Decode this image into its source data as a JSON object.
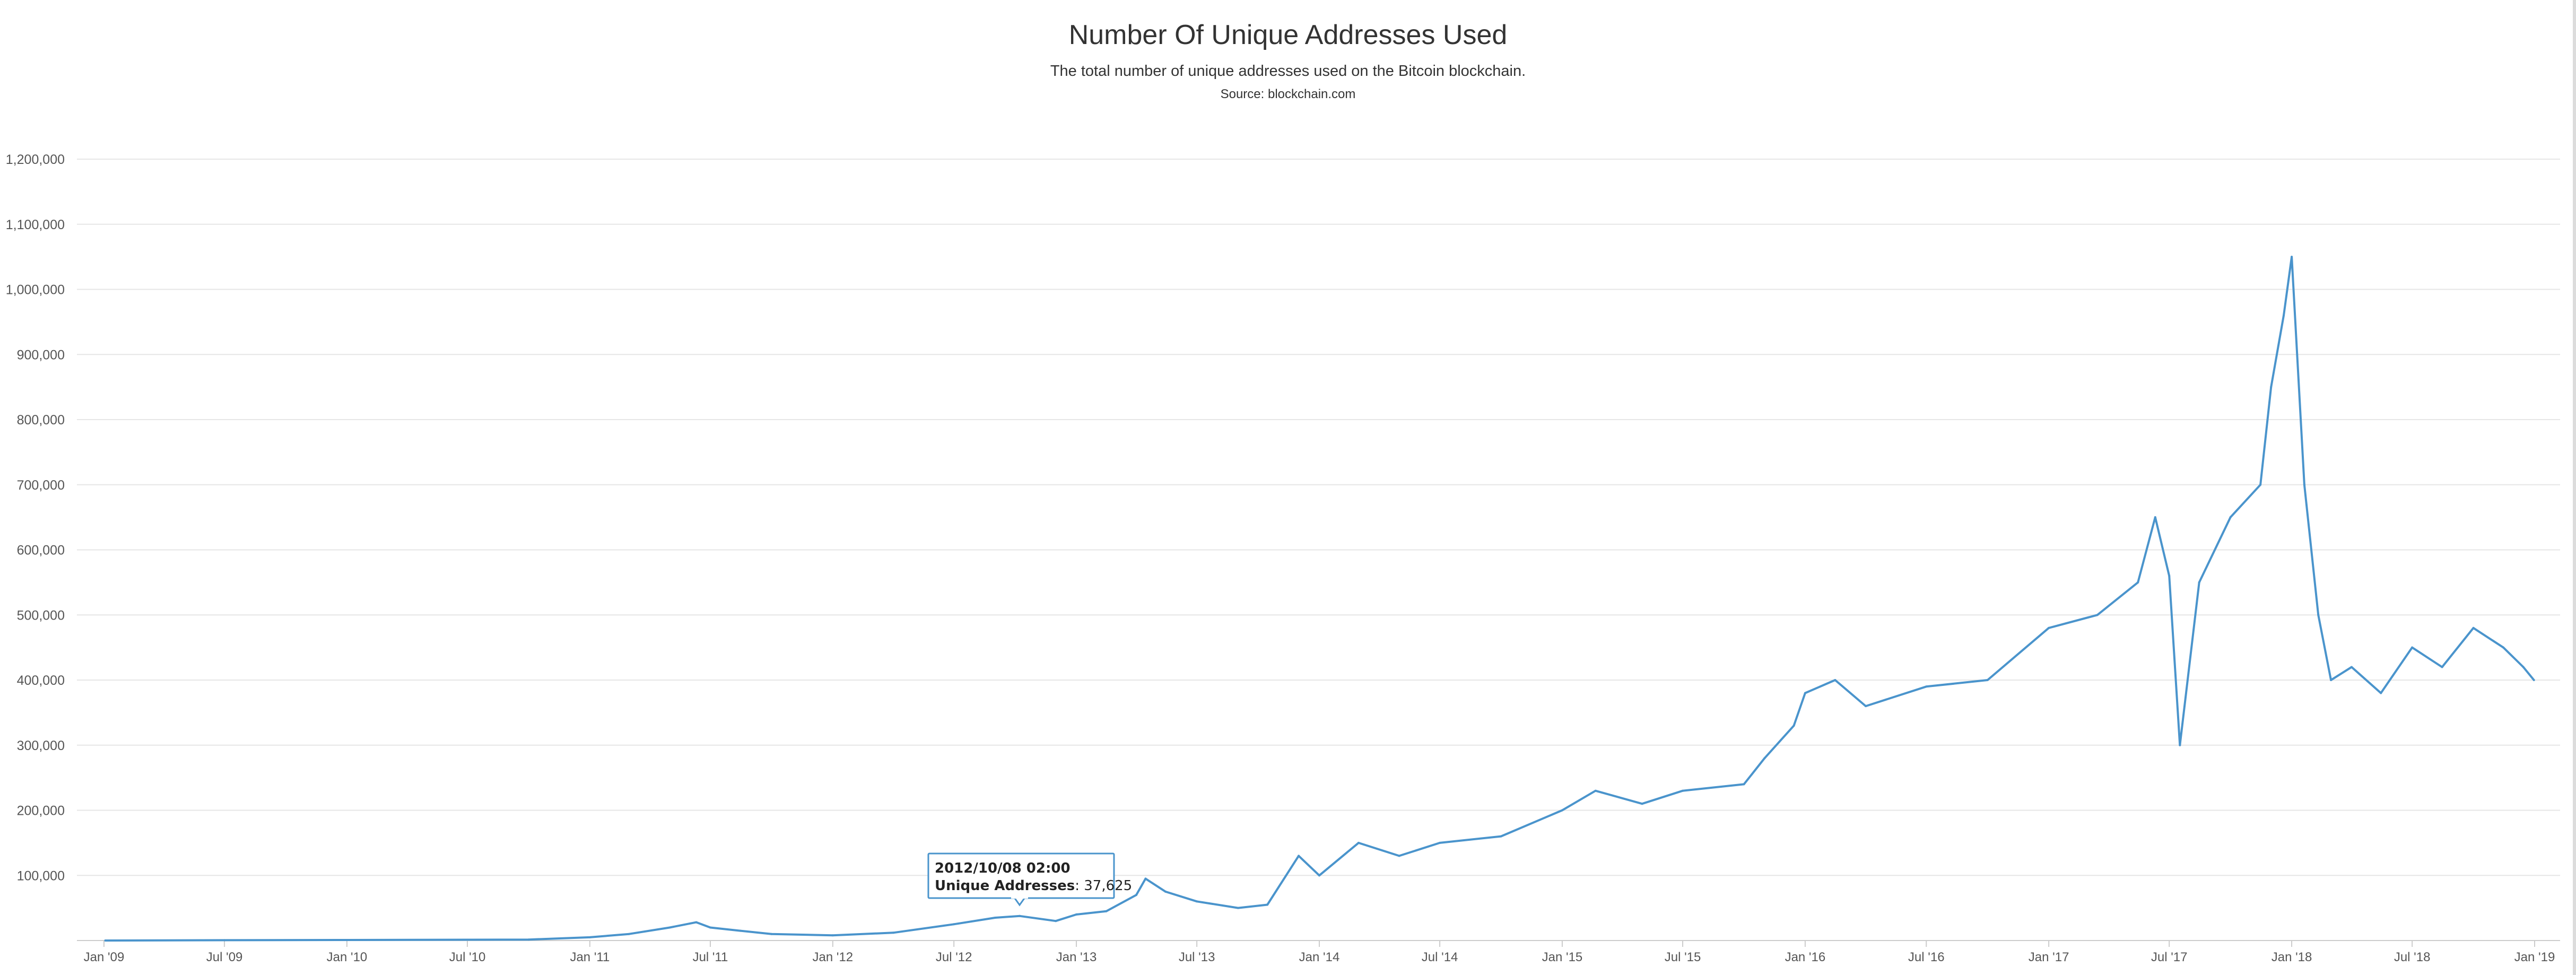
{
  "chart_data": {
    "type": "line",
    "title": "Number Of Unique Addresses Used",
    "subtitle": "The total number of unique addresses used on the Bitcoin blockchain.",
    "source": "Source: blockchain.com",
    "xlabel": "",
    "ylabel": "",
    "x_tick_labels": [
      "Jan '09",
      "Jul '09",
      "Jan '10",
      "Jul '10",
      "Jan '11",
      "Jul '11",
      "Jan '12",
      "Jul '12",
      "Jan '13",
      "Jul '13",
      "Jan '14",
      "Jul '14",
      "Jan '15",
      "Jul '15",
      "Jan '16",
      "Jul '16",
      "Jan '17",
      "Jul '17",
      "Jan '18",
      "Jul '18",
      "Jan '19"
    ],
    "x_tick_dates": [
      "2009-01-01",
      "2009-07-01",
      "2010-01-01",
      "2010-07-01",
      "2011-01-01",
      "2011-07-01",
      "2012-01-01",
      "2012-07-01",
      "2013-01-01",
      "2013-07-01",
      "2014-01-01",
      "2014-07-01",
      "2015-01-01",
      "2015-07-01",
      "2016-01-01",
      "2016-07-01",
      "2017-01-01",
      "2017-07-01",
      "2018-01-01",
      "2018-07-01",
      "2019-01-01"
    ],
    "y_tick_labels": [
      "100,000",
      "200,000",
      "300,000",
      "400,000",
      "500,000",
      "600,000",
      "700,000",
      "800,000",
      "900,000",
      "1,000,000",
      "1,100,000",
      "1,200,000"
    ],
    "y_tick_values": [
      100000,
      200000,
      300000,
      400000,
      500000,
      600000,
      700000,
      800000,
      900000,
      1000000,
      1100000,
      1200000
    ],
    "ylim": [
      0,
      1200000
    ],
    "xlim": [
      "2009-01-01",
      "2019-01-01"
    ],
    "grid": true,
    "legend": "none",
    "line_color": "#4a94cc",
    "series": [
      {
        "x": [
          "2009-01-03",
          "2009-07-01",
          "2010-01-01",
          "2010-07-01",
          "2010-10-01",
          "2011-01-01",
          "2011-03-01",
          "2011-05-01",
          "2011-06-10",
          "2011-07-01",
          "2011-08-15",
          "2011-10-01",
          "2012-01-01",
          "2012-04-01",
          "2012-07-01",
          "2012-09-01",
          "2012-10-08",
          "2012-12-01",
          "2013-01-01",
          "2013-02-15",
          "2013-04-01",
          "2013-04-15",
          "2013-05-15",
          "2013-07-01",
          "2013-09-01",
          "2013-10-15",
          "2013-12-01",
          "2014-01-01",
          "2014-03-01",
          "2014-05-01",
          "2014-07-01",
          "2014-10-01",
          "2015-01-01",
          "2015-02-20",
          "2015-05-01",
          "2015-07-01",
          "2015-10-01",
          "2015-11-01",
          "2015-12-15",
          "2016-01-01",
          "2016-02-15",
          "2016-04-01",
          "2016-07-01",
          "2016-10-01",
          "2017-01-01",
          "2017-03-15",
          "2017-05-15",
          "2017-06-10",
          "2017-07-01",
          "2017-07-17",
          "2017-08-15",
          "2017-10-01",
          "2017-11-15",
          "2017-12-01",
          "2017-12-20",
          "2018-01-01",
          "2018-01-20",
          "2018-02-10",
          "2018-03-01",
          "2018-04-01",
          "2018-05-15",
          "2018-07-01",
          "2018-08-15",
          "2018-10-01",
          "2018-11-15",
          "2018-12-15",
          "2018-12-31"
        ],
        "values": [
          0,
          500,
          800,
          1200,
          1500,
          5000,
          10000,
          20000,
          28000,
          20000,
          15000,
          10000,
          8000,
          12000,
          25000,
          35000,
          37625,
          30000,
          40000,
          45000,
          70000,
          95000,
          75000,
          60000,
          50000,
          55000,
          130000,
          100000,
          150000,
          130000,
          150000,
          160000,
          200000,
          230000,
          210000,
          230000,
          240000,
          280000,
          330000,
          380000,
          400000,
          360000,
          390000,
          400000,
          480000,
          500000,
          550000,
          650000,
          560000,
          300000,
          550000,
          650000,
          700000,
          850000,
          960000,
          1050000,
          700000,
          500000,
          400000,
          420000,
          380000,
          450000,
          420000,
          480000,
          450000,
          420000,
          400000
        ]
      }
    ],
    "tooltip": {
      "date": "2012/10/08 02:00",
      "label": "Unique Addresses",
      "value": "37,625"
    }
  }
}
